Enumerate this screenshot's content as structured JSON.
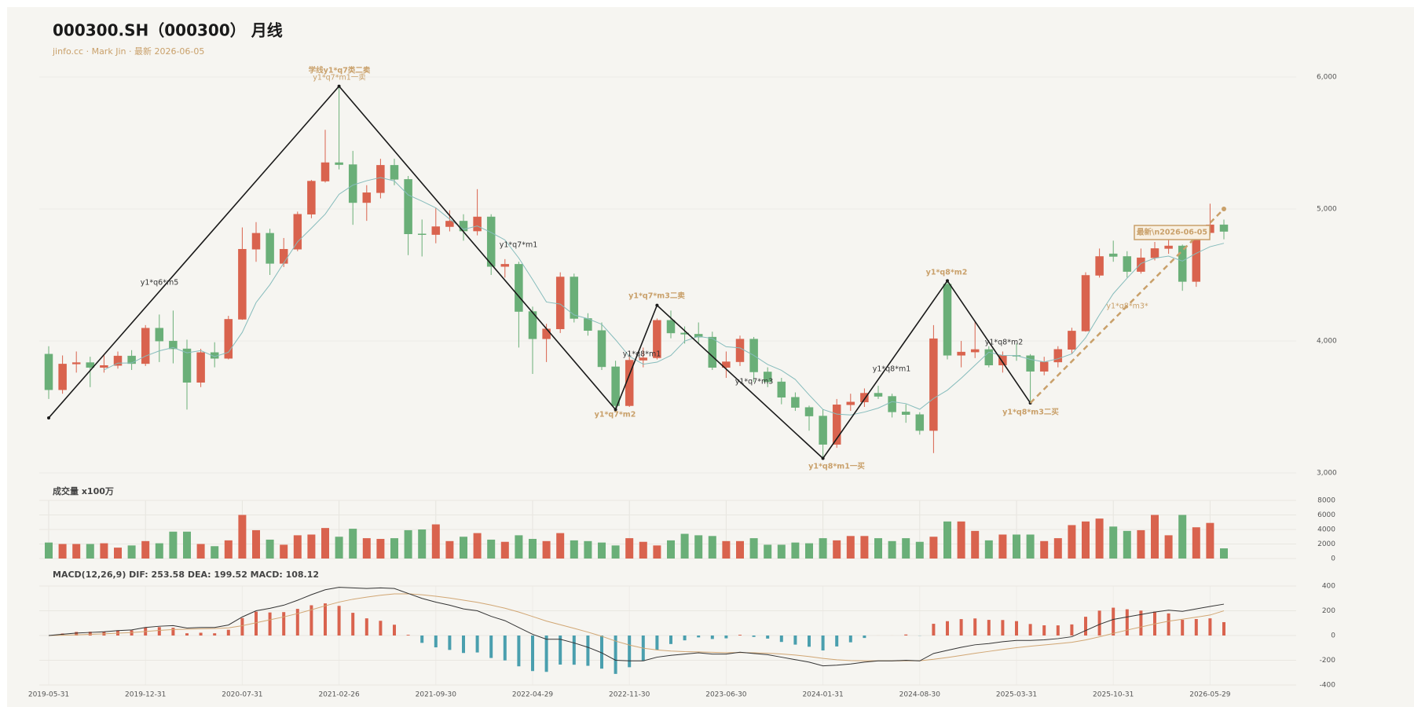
{
  "chart_data": [
    {
      "type": "candlestick",
      "title": "000300.SH（000300） 月线",
      "subtitle": "jinfo.cc · Mark Jin · 最新 2026-06-05",
      "categories": [
        "2019-05-31",
        null,
        null,
        null,
        null,
        null,
        null,
        "2019-12-31",
        null,
        null,
        null,
        null,
        null,
        null,
        "2020-07-31",
        null,
        null,
        null,
        null,
        null,
        null,
        "2021-02-26",
        null,
        null,
        null,
        null,
        null,
        null,
        "2021-09-30",
        null,
        null,
        null,
        null,
        null,
        null,
        "2022-04-29",
        null,
        null,
        null,
        null,
        null,
        null,
        "2022-11-30",
        null,
        null,
        null,
        null,
        null,
        null,
        "2023-06-30",
        null,
        null,
        null,
        null,
        null,
        null,
        "2024-01-31",
        null,
        null,
        null,
        null,
        null,
        null,
        "2024-08-30",
        null,
        null,
        null,
        null,
        null,
        null,
        "2025-03-31",
        null,
        null,
        null,
        null,
        null,
        null,
        "2025-10-31",
        null,
        null,
        null,
        null,
        null,
        null,
        "2026-05-29",
        null
      ],
      "open": [
        3900,
        3630,
        3825,
        3836,
        3799,
        3814,
        3886,
        3828,
        4097,
        3999,
        3940,
        3686,
        3912,
        3868,
        4164,
        4695,
        4816,
        4587,
        4695,
        4960,
        5211,
        5351,
        5336,
        5048,
        5123,
        5331,
        5224,
        4811,
        4806,
        4866,
        4908,
        4833,
        4940,
        4564,
        4581,
        4223,
        4016,
        4091,
        4485,
        4170,
        4079,
        3804,
        3509,
        3854,
        3872,
        4156,
        4060,
        4051,
        4029,
        3799,
        3842,
        4014,
        3765,
        3690,
        3573,
        3496,
        3431,
        3216,
        3516,
        3537,
        3604,
        3580,
        3462,
        3442,
        3321,
        4430,
        3891,
        3916,
        3935,
        3817,
        3890,
        3888,
        3770,
        3840,
        3936,
        4075,
        4497,
        4660,
        4640,
        4526,
        4630,
        4700,
        4720,
        4450,
        4820,
        4880
      ],
      "high": [
        3960,
        3890,
        3920,
        3880,
        3890,
        3920,
        3930,
        4120,
        4200,
        4230,
        4010,
        3940,
        3990,
        4190,
        4860,
        4900,
        4850,
        4780,
        4980,
        5220,
        5600,
        5930,
        5440,
        5180,
        5380,
        5380,
        5250,
        4920,
        5010,
        4990,
        4960,
        5150,
        4960,
        4620,
        4600,
        4260,
        4130,
        4520,
        4510,
        4210,
        4140,
        3850,
        3900,
        3950,
        4170,
        4230,
        4110,
        4140,
        4070,
        3920,
        4040,
        4030,
        3800,
        3720,
        3610,
        3510,
        3480,
        3560,
        3600,
        3640,
        3660,
        3600,
        3520,
        3460,
        4120,
        4460,
        4000,
        4150,
        3960,
        3920,
        3980,
        3900,
        3880,
        3960,
        4100,
        4520,
        4700,
        4760,
        4680,
        4700,
        4750,
        4780,
        4730,
        4860,
        5040,
        4920
      ],
      "low": [
        3560,
        3600,
        3760,
        3650,
        3760,
        3790,
        3780,
        3810,
        3840,
        3830,
        3480,
        3650,
        3800,
        3860,
        4160,
        4600,
        4500,
        4560,
        4680,
        4930,
        5200,
        5300,
        4880,
        4910,
        5080,
        5180,
        4650,
        4640,
        4740,
        4830,
        4760,
        4800,
        4500,
        4480,
        3950,
        3750,
        3840,
        4060,
        4140,
        4040,
        3780,
        3480,
        3500,
        3800,
        3860,
        4020,
        3980,
        3980,
        3780,
        3720,
        3810,
        3690,
        3650,
        3520,
        3470,
        3320,
        3110,
        3190,
        3470,
        3500,
        3560,
        3420,
        3380,
        3290,
        3150,
        3860,
        3800,
        3870,
        3800,
        3760,
        3850,
        3530,
        3740,
        3800,
        3900,
        4070,
        4480,
        4600,
        4480,
        4510,
        4610,
        4660,
        4380,
        4410,
        4800,
        4770
      ],
      "close": [
        3630,
        3825,
        3836,
        3799,
        3814,
        3886,
        3828,
        4097,
        3999,
        3940,
        3686,
        3912,
        3868,
        4164,
        4695,
        4816,
        4587,
        4695,
        4960,
        5211,
        5351,
        5336,
        5048,
        5123,
        5331,
        5224,
        4811,
        4806,
        4866,
        4908,
        4833,
        4940,
        4564,
        4581,
        4223,
        4016,
        4091,
        4485,
        4170,
        4079,
        3804,
        3509,
        3854,
        3872,
        4156,
        4060,
        4051,
        4029,
        3799,
        3842,
        4014,
        3765,
        3690,
        3573,
        3496,
        3431,
        3216,
        3516,
        3537,
        3604,
        3580,
        3462,
        3442,
        3321,
        4017,
        3891,
        3916,
        3935,
        3817,
        3890,
        3888,
        3770,
        3840,
        3936,
        4075,
        4497,
        4640,
        4640,
        4526,
        4630,
        4700,
        4720,
        4450,
        4820,
        4880,
        4830
      ],
      "up_color": "#d9634e",
      "down_color": "#6aaf78",
      "ma": {
        "color": "#86bcbc",
        "values": [
          null,
          null,
          null,
          null,
          3781,
          3832,
          3833,
          3885,
          3925,
          3950,
          3910,
          3927,
          3881,
          3914,
          4065,
          4291,
          4426,
          4591,
          4751,
          4854,
          4961,
          5111,
          5181,
          5214,
          5238,
          5212,
          5107,
          5059,
          5008,
          4923,
          4845,
          4871,
          4822,
          4765,
          4628,
          4465,
          4295,
          4279,
          4197,
          4168,
          4126,
          4009,
          3883,
          3824,
          3839,
          3890,
          3999,
          4034,
          4019,
          3956,
          3947,
          3890,
          3822,
          3777,
          3708,
          3591,
          3481,
          3446,
          3439,
          3461,
          3491,
          3540,
          3525,
          3482,
          3564,
          3627,
          3717,
          3816,
          3915,
          3890,
          3889,
          3860,
          3841,
          3865,
          3902,
          4024,
          4198,
          4358,
          4476,
          4587,
          4627,
          4643,
          4605,
          4664,
          4714,
          4740
        ]
      },
      "pivots": {
        "color": "#1a1a1a",
        "x": [
          0,
          21,
          41,
          44,
          56,
          65,
          71
        ],
        "values": [
          3417,
          5930,
          3480,
          4270,
          3110,
          4456,
          3530
        ]
      },
      "projection": {
        "color": "#c9a06a",
        "x": [
          71,
          85
        ],
        "values": [
          3530,
          5000
        ]
      },
      "annotations": [
        "学线y1*q7类二卖",
        "y1*q7*m1一卖",
        "y1*q6*m5",
        "y1*q7*m1",
        "y1*q7*m2",
        "y1*q7*m3二卖",
        "y1*q8*m1",
        "y1*q7*m3",
        "y1*q8*m1",
        "y1*q8*m1一买",
        "y1*q8*m2",
        "y1*q8*m2",
        "y1*q8*m3二买",
        "y1*q8*m3*",
        "最新\\n2026-06-05"
      ],
      "ylim": [
        3000,
        6000
      ],
      "yticks": [
        {
          "value": 3000,
          "label": "3,000"
        },
        {
          "value": 4000,
          "label": "4,000"
        },
        {
          "value": 5000,
          "label": "5,000"
        },
        {
          "value": 6000,
          "label": "6,000"
        }
      ]
    },
    {
      "type": "bar",
      "title": "成交量 x100万",
      "values": [
        2200,
        2000,
        2000,
        2000,
        2100,
        1500,
        1800,
        2400,
        2100,
        3700,
        3700,
        2000,
        1700,
        2500,
        6000,
        3900,
        2600,
        1900,
        3200,
        3300,
        4200,
        3000,
        4100,
        2800,
        2700,
        2800,
        3900,
        4000,
        4700,
        2400,
        3000,
        3500,
        2600,
        2300,
        3200,
        2700,
        2400,
        3500,
        2500,
        2400,
        2200,
        1800,
        2800,
        2300,
        1800,
        2500,
        3400,
        3200,
        3100,
        2400,
        2400,
        2800,
        1900,
        1900,
        2200,
        2100,
        2800,
        2500,
        3100,
        3100,
        2800,
        2400,
        2800,
        2300,
        3000,
        5100,
        5100,
        3800,
        2500,
        3300,
        3300,
        3300,
        2400,
        2800,
        4600,
        5100,
        5500,
        4400,
        3800,
        3900,
        6000,
        3200,
        6000,
        4300,
        4900,
        1400
      ],
      "ylim": [
        0,
        8000
      ],
      "yticks": [
        0,
        2000,
        4000,
        6000,
        8000
      ]
    },
    {
      "type": "macd",
      "title": "MACD(12,26,9) DIF: 253.58 DEA: 199.52 MACD: 108.12",
      "dif": {
        "color": "#333333",
        "values": [
          0,
          10,
          20,
          25,
          30,
          40,
          45,
          65,
          75,
          80,
          60,
          65,
          65,
          85,
          150,
          200,
          220,
          245,
          285,
          330,
          370,
          390,
          385,
          380,
          385,
          380,
          340,
          300,
          270,
          245,
          215,
          200,
          155,
          120,
          65,
          10,
          -30,
          -30,
          -60,
          -95,
          -140,
          -200,
          -205,
          -205,
          -175,
          -160,
          -150,
          -140,
          -150,
          -150,
          -135,
          -145,
          -155,
          -175,
          -195,
          -215,
          -245,
          -240,
          -230,
          -215,
          -205,
          -205,
          -200,
          -205,
          -145,
          -120,
          -95,
          -75,
          -65,
          -50,
          -40,
          -40,
          -35,
          -25,
          -10,
          40,
          90,
          130,
          150,
          170,
          190,
          205,
          195,
          215,
          235,
          253.58
        ]
      },
      "dea": {
        "color": "#d1a673",
        "values": [
          0,
          2,
          5.6,
          9.8,
          13.8,
          19,
          24.2,
          32.4,
          40.9,
          48.7,
          51,
          53.8,
          56,
          61.8,
          79.4,
          103.5,
          126.8,
          150.4,
          177.3,
          207.8,
          240.2,
          270.2,
          293.2,
          310.6,
          325.5,
          336.4,
          337.1,
          329.7,
          317.8,
          303.2,
          285.6,
          268.5,
          245.8,
          220.6,
          189.5,
          153.6,
          116.9,
          87.5,
          58,
          27.4,
          -6.1,
          -44.9,
          -76.9,
          -102.5,
          -117,
          -125.6,
          -130.5,
          -132.4,
          -135.9,
          -138.7,
          -138,
          -139.4,
          -142.5,
          -149,
          -158.2,
          -169.6,
          -184.7,
          -195.8,
          -202.6,
          -205.1,
          -205.1,
          -205.1,
          -204.1,
          -204.3,
          -192.4,
          -177.9,
          -161.3,
          -144,
          -128.2,
          -112.6,
          -98.1,
          -86.5,
          -76.2,
          -66,
          -54.8,
          -35.8,
          -10.6,
          17.5,
          44,
          69.2,
          93.4,
          115.7,
          131.6,
          148.3,
          165.6,
          199.52
        ]
      },
      "macd": {
        "up_color": "#d9634e",
        "down_color": "#4a9fae",
        "values": [
          0,
          16,
          28.8,
          30.4,
          32.4,
          42,
          41.6,
          65.2,
          68.2,
          62.6,
          18,
          22.4,
          18,
          46.4,
          141.2,
          193,
          186.4,
          189.2,
          215.4,
          244.4,
          259.6,
          239.6,
          183.6,
          138.8,
          119,
          87.2,
          5.8,
          -59.4,
          -95.6,
          -116.4,
          -141.2,
          -137,
          -181.6,
          -201.2,
          -249,
          -287.2,
          -293.8,
          -235,
          -236,
          -244.8,
          -267.8,
          -310.2,
          -256.2,
          -205,
          -116,
          -68.8,
          -39,
          -15.2,
          -28.2,
          -22.6,
          6,
          -11.2,
          -25,
          -52,
          -73.6,
          -90.8,
          -120.6,
          -88.4,
          -54.8,
          -19.8,
          0.2,
          0.2,
          8.2,
          -1.4,
          94.8,
          115.8,
          132.6,
          138,
          126.4,
          125.2,
          116.2,
          93,
          82.4,
          82,
          89.6,
          151.6,
          201.2,
          225,
          212,
          201.6,
          193.2,
          178.6,
          126.8,
          133.4,
          138.8,
          108.12
        ]
      },
      "ylim": [
        -400,
        400
      ],
      "yticks": [
        -400,
        -200,
        0,
        200,
        400
      ]
    }
  ]
}
